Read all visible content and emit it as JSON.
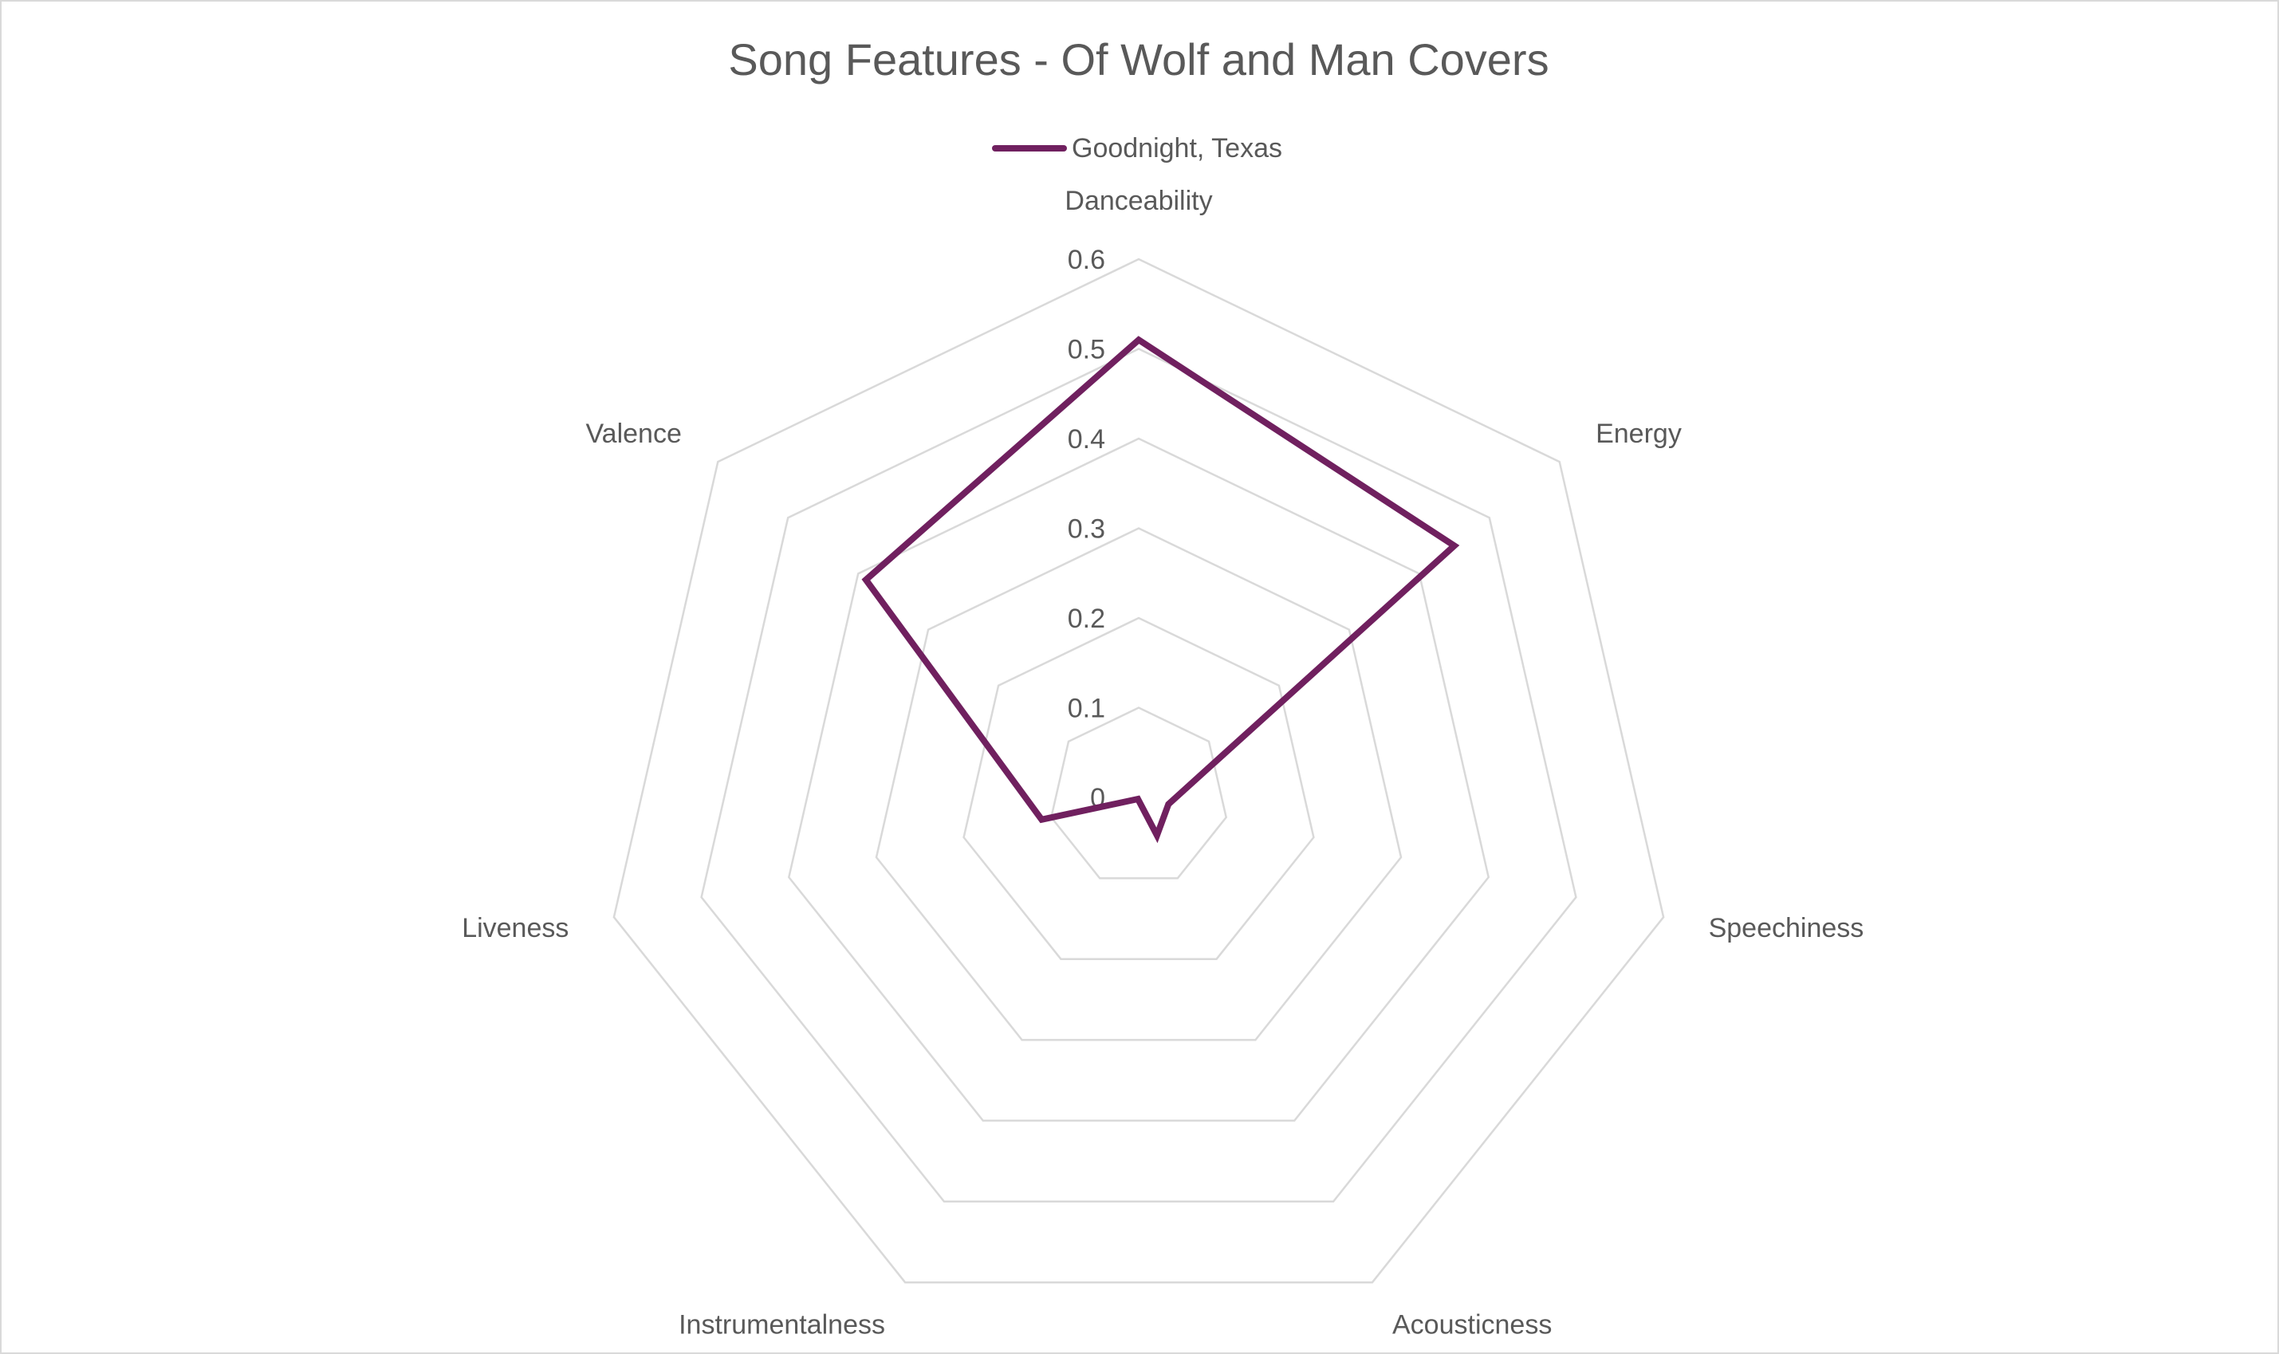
{
  "chart_data": {
    "type": "radar",
    "title": "Song Features - Of Wolf and Man Covers",
    "axes": [
      "Danceability",
      "Energy",
      "Speechiness",
      "Acousticness",
      "Instrumentalness",
      "Liveness",
      "Valence"
    ],
    "ticks": [
      "0",
      "0.1",
      "0.2",
      "0.3",
      "0.4",
      "0.5",
      "0.6"
    ],
    "rlim": [
      0,
      0.6
    ],
    "grid": true,
    "legend_position": "top",
    "series": [
      {
        "name": "Goodnight, Texas",
        "color": "#70205f",
        "values": [
          0.51,
          0.45,
          0.034,
          0.047,
          0.002,
          0.111,
          0.389
        ]
      }
    ]
  }
}
